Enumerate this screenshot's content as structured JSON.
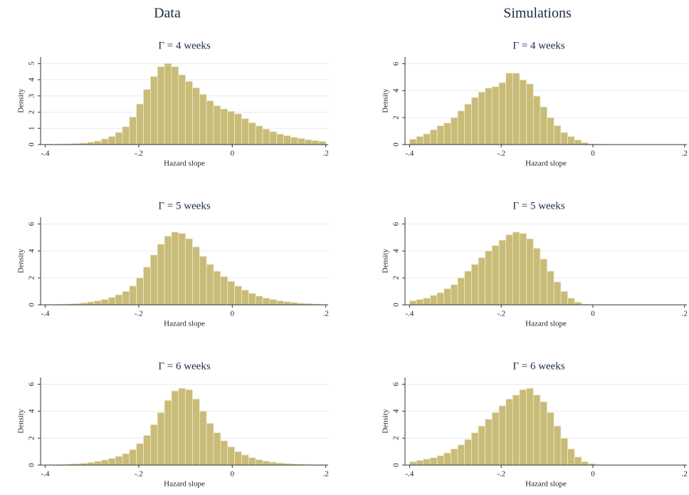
{
  "columns": [
    "Data",
    "Simulations"
  ],
  "chart_data": [
    {
      "type": "histogram",
      "title": "Γ = 4 weeks",
      "xlabel": "Hazard slope",
      "ylabel": "Density",
      "color": "#c8bc78",
      "grid": true,
      "bins": [
        -0.4,
        -0.385,
        -0.37,
        -0.355,
        -0.34,
        -0.325,
        -0.31,
        -0.295,
        -0.28,
        -0.265,
        -0.25,
        -0.235,
        -0.22,
        -0.205,
        -0.19,
        -0.175,
        -0.16,
        -0.145,
        -0.13,
        -0.115,
        -0.1,
        -0.085,
        -0.07,
        -0.055,
        -0.04,
        -0.025,
        -0.01,
        0.005,
        0.02,
        0.035,
        0.05,
        0.065,
        0.08,
        0.095,
        0.11,
        0.125,
        0.14,
        0.155,
        0.17,
        0.185,
        0.2
      ],
      "values": [
        0.02,
        0.03,
        0.04,
        0.05,
        0.07,
        0.1,
        0.15,
        0.22,
        0.35,
        0.5,
        0.75,
        1.1,
        1.7,
        2.5,
        3.4,
        4.2,
        4.8,
        5.0,
        4.8,
        4.3,
        3.9,
        3.5,
        3.1,
        2.7,
        2.4,
        2.2,
        2.05,
        1.9,
        1.6,
        1.35,
        1.15,
        0.95,
        0.8,
        0.65,
        0.55,
        0.45,
        0.38,
        0.3,
        0.25,
        0.2
      ],
      "xlim": [
        -0.41,
        0.205
      ],
      "xticks": [
        {
          "value": -0.4,
          "label": "-.4"
        },
        {
          "value": -0.2,
          "label": "-.2"
        },
        0,
        {
          "value": 0.2,
          "label": ".2"
        }
      ],
      "ylim": [
        0,
        5.4
      ],
      "yticks": [
        0,
        1,
        2,
        3,
        4,
        5
      ]
    },
    {
      "type": "histogram",
      "title": "Γ = 4 weeks",
      "xlabel": "Hazard slope",
      "ylabel": "Density",
      "color": "#c8bc78",
      "grid": true,
      "bins": [
        -0.4,
        -0.385,
        -0.37,
        -0.355,
        -0.34,
        -0.325,
        -0.31,
        -0.295,
        -0.28,
        -0.265,
        -0.25,
        -0.235,
        -0.22,
        -0.205,
        -0.19,
        -0.175,
        -0.16,
        -0.145,
        -0.13,
        -0.115,
        -0.1,
        -0.085,
        -0.07,
        -0.055,
        -0.04,
        -0.025,
        -0.01,
        0.005,
        0.02,
        0.035,
        0.05,
        0.065,
        0.08,
        0.095,
        0.11,
        0.125,
        0.14,
        0.155,
        0.17,
        0.185,
        0.2
      ],
      "values": [
        0.4,
        0.6,
        0.8,
        1.1,
        1.4,
        1.6,
        2.0,
        2.5,
        3.0,
        3.5,
        3.9,
        4.2,
        4.3,
        4.6,
        5.3,
        5.3,
        4.8,
        4.5,
        3.6,
        2.8,
        2.0,
        1.4,
        0.9,
        0.6,
        0.35,
        0.15,
        0.05,
        0.02,
        0.02,
        0,
        0,
        0,
        0,
        0,
        0,
        0,
        0,
        0,
        0,
        0
      ],
      "xlim": [
        -0.41,
        0.205
      ],
      "xticks": [
        {
          "value": -0.4,
          "label": "-.4"
        },
        {
          "value": -0.2,
          "label": "-.2"
        },
        0,
        {
          "value": 0.2,
          "label": ".2"
        }
      ],
      "ylim": [
        0,
        6.5
      ],
      "yticks": [
        0,
        2,
        4,
        6
      ]
    },
    {
      "type": "histogram",
      "title": "Γ = 5 weeks",
      "xlabel": "Hazard slope",
      "ylabel": "Density",
      "color": "#c8bc78",
      "grid": true,
      "bins": [
        -0.4,
        -0.385,
        -0.37,
        -0.355,
        -0.34,
        -0.325,
        -0.31,
        -0.295,
        -0.28,
        -0.265,
        -0.25,
        -0.235,
        -0.22,
        -0.205,
        -0.19,
        -0.175,
        -0.16,
        -0.145,
        -0.13,
        -0.115,
        -0.1,
        -0.085,
        -0.07,
        -0.055,
        -0.04,
        -0.025,
        -0.01,
        0.005,
        0.02,
        0.035,
        0.05,
        0.065,
        0.08,
        0.095,
        0.11,
        0.125,
        0.14,
        0.155,
        0.17,
        0.185,
        0.2
      ],
      "values": [
        0.02,
        0.03,
        0.05,
        0.07,
        0.1,
        0.15,
        0.22,
        0.3,
        0.4,
        0.55,
        0.75,
        1.0,
        1.4,
        2.0,
        2.8,
        3.7,
        4.5,
        5.1,
        5.4,
        5.3,
        4.9,
        4.3,
        3.6,
        3.0,
        2.5,
        2.1,
        1.75,
        1.4,
        1.1,
        0.85,
        0.65,
        0.5,
        0.4,
        0.3,
        0.23,
        0.18,
        0.13,
        0.1,
        0.07,
        0.05
      ],
      "xlim": [
        -0.41,
        0.205
      ],
      "xticks": [
        {
          "value": -0.4,
          "label": "-.4"
        },
        {
          "value": -0.2,
          "label": "-.2"
        },
        0,
        {
          "value": 0.2,
          "label": ".2"
        }
      ],
      "ylim": [
        0,
        6.5
      ],
      "yticks": [
        0,
        2,
        4,
        6
      ]
    },
    {
      "type": "histogram",
      "title": "Γ = 5 weeks",
      "xlabel": "Hazard slope",
      "ylabel": "Density",
      "color": "#c8bc78",
      "grid": true,
      "bins": [
        -0.4,
        -0.385,
        -0.37,
        -0.355,
        -0.34,
        -0.325,
        -0.31,
        -0.295,
        -0.28,
        -0.265,
        -0.25,
        -0.235,
        -0.22,
        -0.205,
        -0.19,
        -0.175,
        -0.16,
        -0.145,
        -0.13,
        -0.115,
        -0.1,
        -0.085,
        -0.07,
        -0.055,
        -0.04,
        -0.025,
        -0.01,
        0.005,
        0.02,
        0.035,
        0.05,
        0.065,
        0.08,
        0.095,
        0.11,
        0.125,
        0.14,
        0.155,
        0.17,
        0.185,
        0.2
      ],
      "values": [
        0.3,
        0.4,
        0.5,
        0.7,
        0.9,
        1.2,
        1.5,
        2.0,
        2.5,
        3.0,
        3.5,
        4.0,
        4.4,
        4.8,
        5.2,
        5.4,
        5.3,
        4.9,
        4.2,
        3.4,
        2.5,
        1.7,
        1.0,
        0.5,
        0.2,
        0.05,
        0.02,
        0,
        0,
        0,
        0,
        0,
        0,
        0,
        0,
        0,
        0,
        0,
        0,
        0
      ],
      "xlim": [
        -0.41,
        0.205
      ],
      "xticks": [
        {
          "value": -0.4,
          "label": "-.4"
        },
        {
          "value": -0.2,
          "label": "-.2"
        },
        0,
        {
          "value": 0.2,
          "label": ".2"
        }
      ],
      "ylim": [
        0,
        6.5
      ],
      "yticks": [
        0,
        2,
        4,
        6
      ]
    },
    {
      "type": "histogram",
      "title": "Γ = 6 weeks",
      "xlabel": "Hazard slope",
      "ylabel": "Density",
      "color": "#c8bc78",
      "grid": true,
      "bins": [
        -0.4,
        -0.385,
        -0.37,
        -0.355,
        -0.34,
        -0.325,
        -0.31,
        -0.295,
        -0.28,
        -0.265,
        -0.25,
        -0.235,
        -0.22,
        -0.205,
        -0.19,
        -0.175,
        -0.16,
        -0.145,
        -0.13,
        -0.115,
        -0.1,
        -0.085,
        -0.07,
        -0.055,
        -0.04,
        -0.025,
        -0.01,
        0.005,
        0.02,
        0.035,
        0.05,
        0.065,
        0.08,
        0.095,
        0.11,
        0.125,
        0.14,
        0.155,
        0.17,
        0.185,
        0.2
      ],
      "values": [
        0.02,
        0.03,
        0.05,
        0.07,
        0.1,
        0.14,
        0.2,
        0.28,
        0.38,
        0.5,
        0.65,
        0.85,
        1.15,
        1.6,
        2.2,
        3.0,
        3.9,
        4.8,
        5.5,
        5.7,
        5.6,
        4.9,
        4.0,
        3.1,
        2.4,
        1.8,
        1.35,
        1.0,
        0.75,
        0.55,
        0.4,
        0.3,
        0.22,
        0.16,
        0.12,
        0.09,
        0.07,
        0.05,
        0.04,
        0.03
      ],
      "xlim": [
        -0.41,
        0.205
      ],
      "xticks": [
        {
          "value": -0.4,
          "label": "-.4"
        },
        {
          "value": -0.2,
          "label": "-.2"
        },
        0,
        {
          "value": 0.2,
          "label": ".2"
        }
      ],
      "ylim": [
        0,
        6.5
      ],
      "yticks": [
        0,
        2,
        4,
        6
      ]
    },
    {
      "type": "histogram",
      "title": "Γ = 6 weeks",
      "xlabel": "Hazard slope",
      "ylabel": "Density",
      "color": "#c8bc78",
      "grid": true,
      "bins": [
        -0.4,
        -0.385,
        -0.37,
        -0.355,
        -0.34,
        -0.325,
        -0.31,
        -0.295,
        -0.28,
        -0.265,
        -0.25,
        -0.235,
        -0.22,
        -0.205,
        -0.19,
        -0.175,
        -0.16,
        -0.145,
        -0.13,
        -0.115,
        -0.1,
        -0.085,
        -0.07,
        -0.055,
        -0.04,
        -0.025,
        -0.01,
        0.005,
        0.02,
        0.035,
        0.05,
        0.065,
        0.08,
        0.095,
        0.11,
        0.125,
        0.14,
        0.155,
        0.17,
        0.185,
        0.2
      ],
      "values": [
        0.25,
        0.35,
        0.45,
        0.55,
        0.7,
        0.9,
        1.2,
        1.5,
        1.9,
        2.4,
        2.9,
        3.4,
        3.9,
        4.4,
        4.9,
        5.2,
        5.6,
        5.7,
        5.2,
        4.7,
        3.9,
        2.9,
        2.0,
        1.2,
        0.6,
        0.25,
        0.1,
        0.02,
        0,
        0,
        0,
        0,
        0,
        0,
        0,
        0,
        0,
        0,
        0,
        0
      ],
      "xlim": [
        -0.41,
        0.205
      ],
      "xticks": [
        {
          "value": -0.4,
          "label": "-.4"
        },
        {
          "value": -0.2,
          "label": "-.2"
        },
        0,
        {
          "value": 0.2,
          "label": ".2"
        }
      ],
      "ylim": [
        0,
        6.5
      ],
      "yticks": [
        0,
        2,
        4,
        6
      ]
    }
  ]
}
